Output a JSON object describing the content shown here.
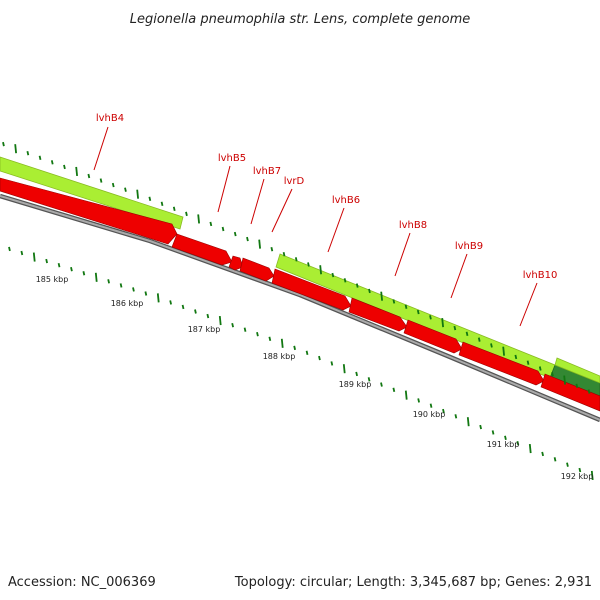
{
  "header": {
    "title": "Legionella pneumophila str. Lens, complete genome"
  },
  "footer": {
    "accession": "Accession: NC_006369",
    "stats": "Topology: circular; Length: 3,345,687 bp; Genes: 2,931"
  },
  "colors": {
    "cds": "#ee0000",
    "gene_light": "#aaee33",
    "gene_dark": "#228822",
    "backbone": "#888888",
    "ticks": "#117711",
    "label": "#cc0000"
  },
  "genes": [
    {
      "label": "lvhB4"
    },
    {
      "label": "lvhB5"
    },
    {
      "label": "lvhB7"
    },
    {
      "label": "lvrD"
    },
    {
      "label": "lvhB6"
    },
    {
      "label": "lvhB8"
    },
    {
      "label": "lvhB9"
    },
    {
      "label": "lvhB10"
    }
  ],
  "kbp_labels": [
    "185 kbp",
    "186 kbp",
    "187 kbp",
    "188 kbp",
    "189 kbp",
    "190 kbp",
    "191 kbp",
    "192 kbp"
  ]
}
